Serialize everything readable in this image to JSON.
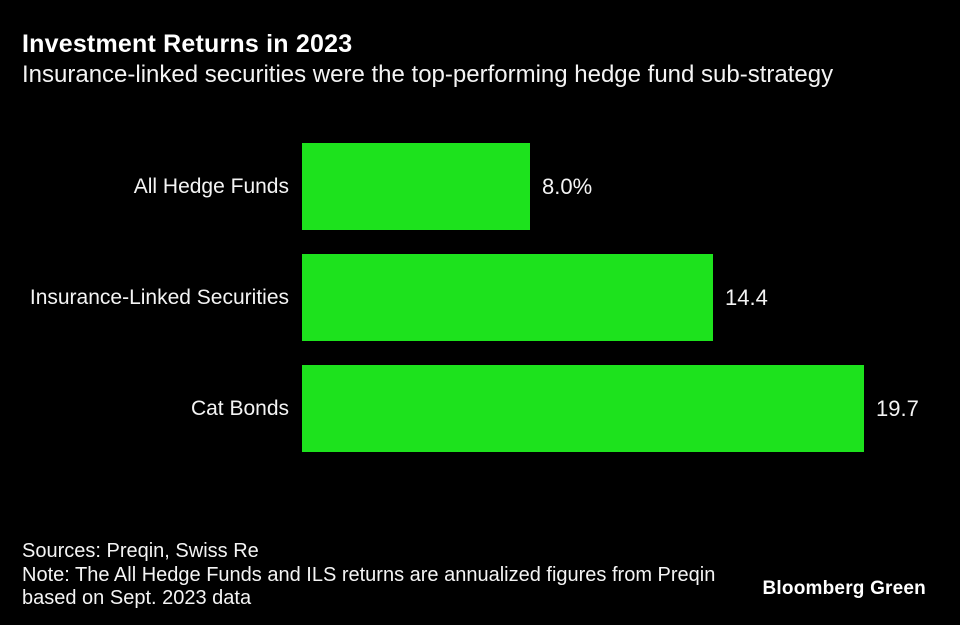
{
  "header": {
    "title": "Investment Returns in 2023",
    "subtitle": "Insurance-linked securities were the top-performing hedge fund sub-strategy"
  },
  "chart_data": {
    "type": "bar",
    "orientation": "horizontal",
    "title": "Investment Returns in 2023",
    "subtitle": "Insurance-linked securities were the top-performing hedge fund sub-strategy",
    "categories": [
      "All Hedge Funds",
      "Insurance-Linked Securities",
      "Cat Bonds"
    ],
    "values": [
      8.0,
      14.4,
      19.7
    ],
    "value_labels": [
      "8.0%",
      "14.4",
      "19.7"
    ],
    "unit": "percent",
    "xlim": [
      0,
      19.7
    ],
    "bar_color": "#1de21d",
    "background_color": "#000000",
    "text_color": "#f4f4f4",
    "grid": false,
    "legend": false
  },
  "footer": {
    "sources": "Sources: Preqin, Swiss Re",
    "note_lines": [
      "Note: The All Hedge Funds and ILS returns are annualized figures from Preqin",
      "based on Sept. 2023 data"
    ],
    "brand": "Bloomberg Green"
  }
}
